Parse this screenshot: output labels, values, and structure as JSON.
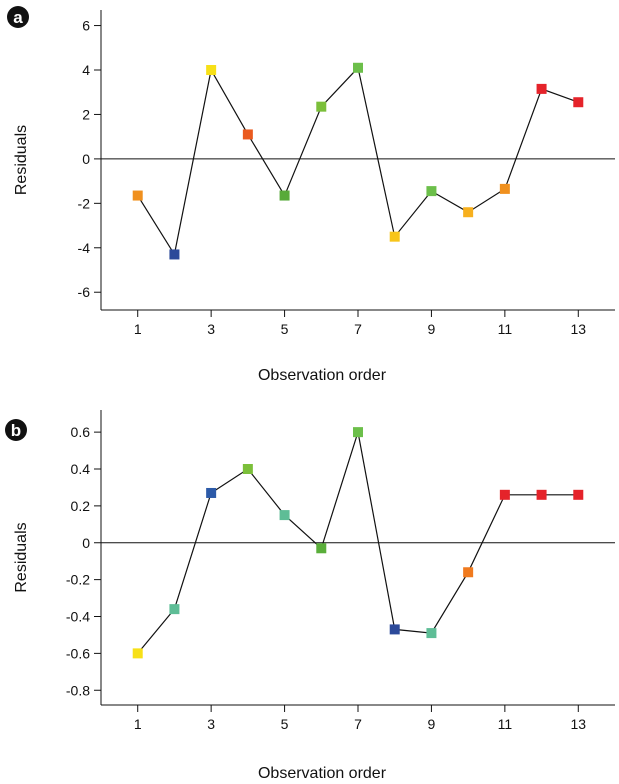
{
  "chart_data": [
    {
      "panel": "a",
      "type": "line",
      "xlabel": "Observation order",
      "ylabel": "Residuals",
      "x_ticks": [
        1,
        3,
        5,
        7,
        9,
        11,
        13
      ],
      "y_ticks": [
        6,
        4,
        2,
        0,
        -2,
        -4,
        -6
      ],
      "y_tick_labels": [
        "6",
        "4",
        "2",
        "0",
        "-2",
        "-4",
        "-6"
      ],
      "xlim": [
        0,
        14
      ],
      "ylim": [
        -6.8,
        6.7
      ],
      "zero_line": true,
      "x": [
        1,
        2,
        3,
        4,
        5,
        6,
        7,
        8,
        9,
        10,
        11,
        12,
        13
      ],
      "y": [
        -1.65,
        -4.3,
        4.0,
        1.1,
        -1.65,
        2.35,
        4.1,
        -3.5,
        -1.45,
        -2.4,
        -1.35,
        3.15,
        2.55
      ],
      "point_colors": [
        "#f0901e",
        "#2c4a9a",
        "#f7e017",
        "#ea5a1e",
        "#58aa3a",
        "#7bbf3a",
        "#6cbf4a",
        "#f7c51a",
        "#6cbf4a",
        "#f7b01e",
        "#f0901e",
        "#e5232a",
        "#e5232a"
      ]
    },
    {
      "panel": "b",
      "type": "line",
      "xlabel": "Observation order",
      "ylabel": "Residuals",
      "x_ticks": [
        1,
        3,
        5,
        7,
        9,
        11,
        13
      ],
      "y_ticks": [
        0.6,
        0.4,
        0.2,
        0,
        -0.2,
        -0.4,
        -0.6,
        -0.8
      ],
      "y_tick_labels": [
        "0.6",
        "0.4",
        "0.2",
        "0",
        "-0.2",
        "-0.4",
        "-0.6",
        "-0.8"
      ],
      "xlim": [
        0,
        14
      ],
      "ylim": [
        -0.88,
        0.72
      ],
      "zero_line": true,
      "x": [
        1,
        2,
        3,
        4,
        5,
        6,
        7,
        8,
        9,
        10,
        11,
        12,
        13
      ],
      "y": [
        -0.6,
        -0.36,
        0.27,
        0.4,
        0.15,
        -0.03,
        0.6,
        -0.47,
        -0.49,
        -0.16,
        0.26,
        0.26,
        0.26
      ],
      "point_colors": [
        "#f7e017",
        "#5ebd96",
        "#2c5aa8",
        "#7bbf3a",
        "#5ebd96",
        "#5aae3a",
        "#6cbf4a",
        "#2c4a9a",
        "#5ebd96",
        "#f07a1e",
        "#e5232a",
        "#e5232a",
        "#e5232a"
      ]
    }
  ]
}
